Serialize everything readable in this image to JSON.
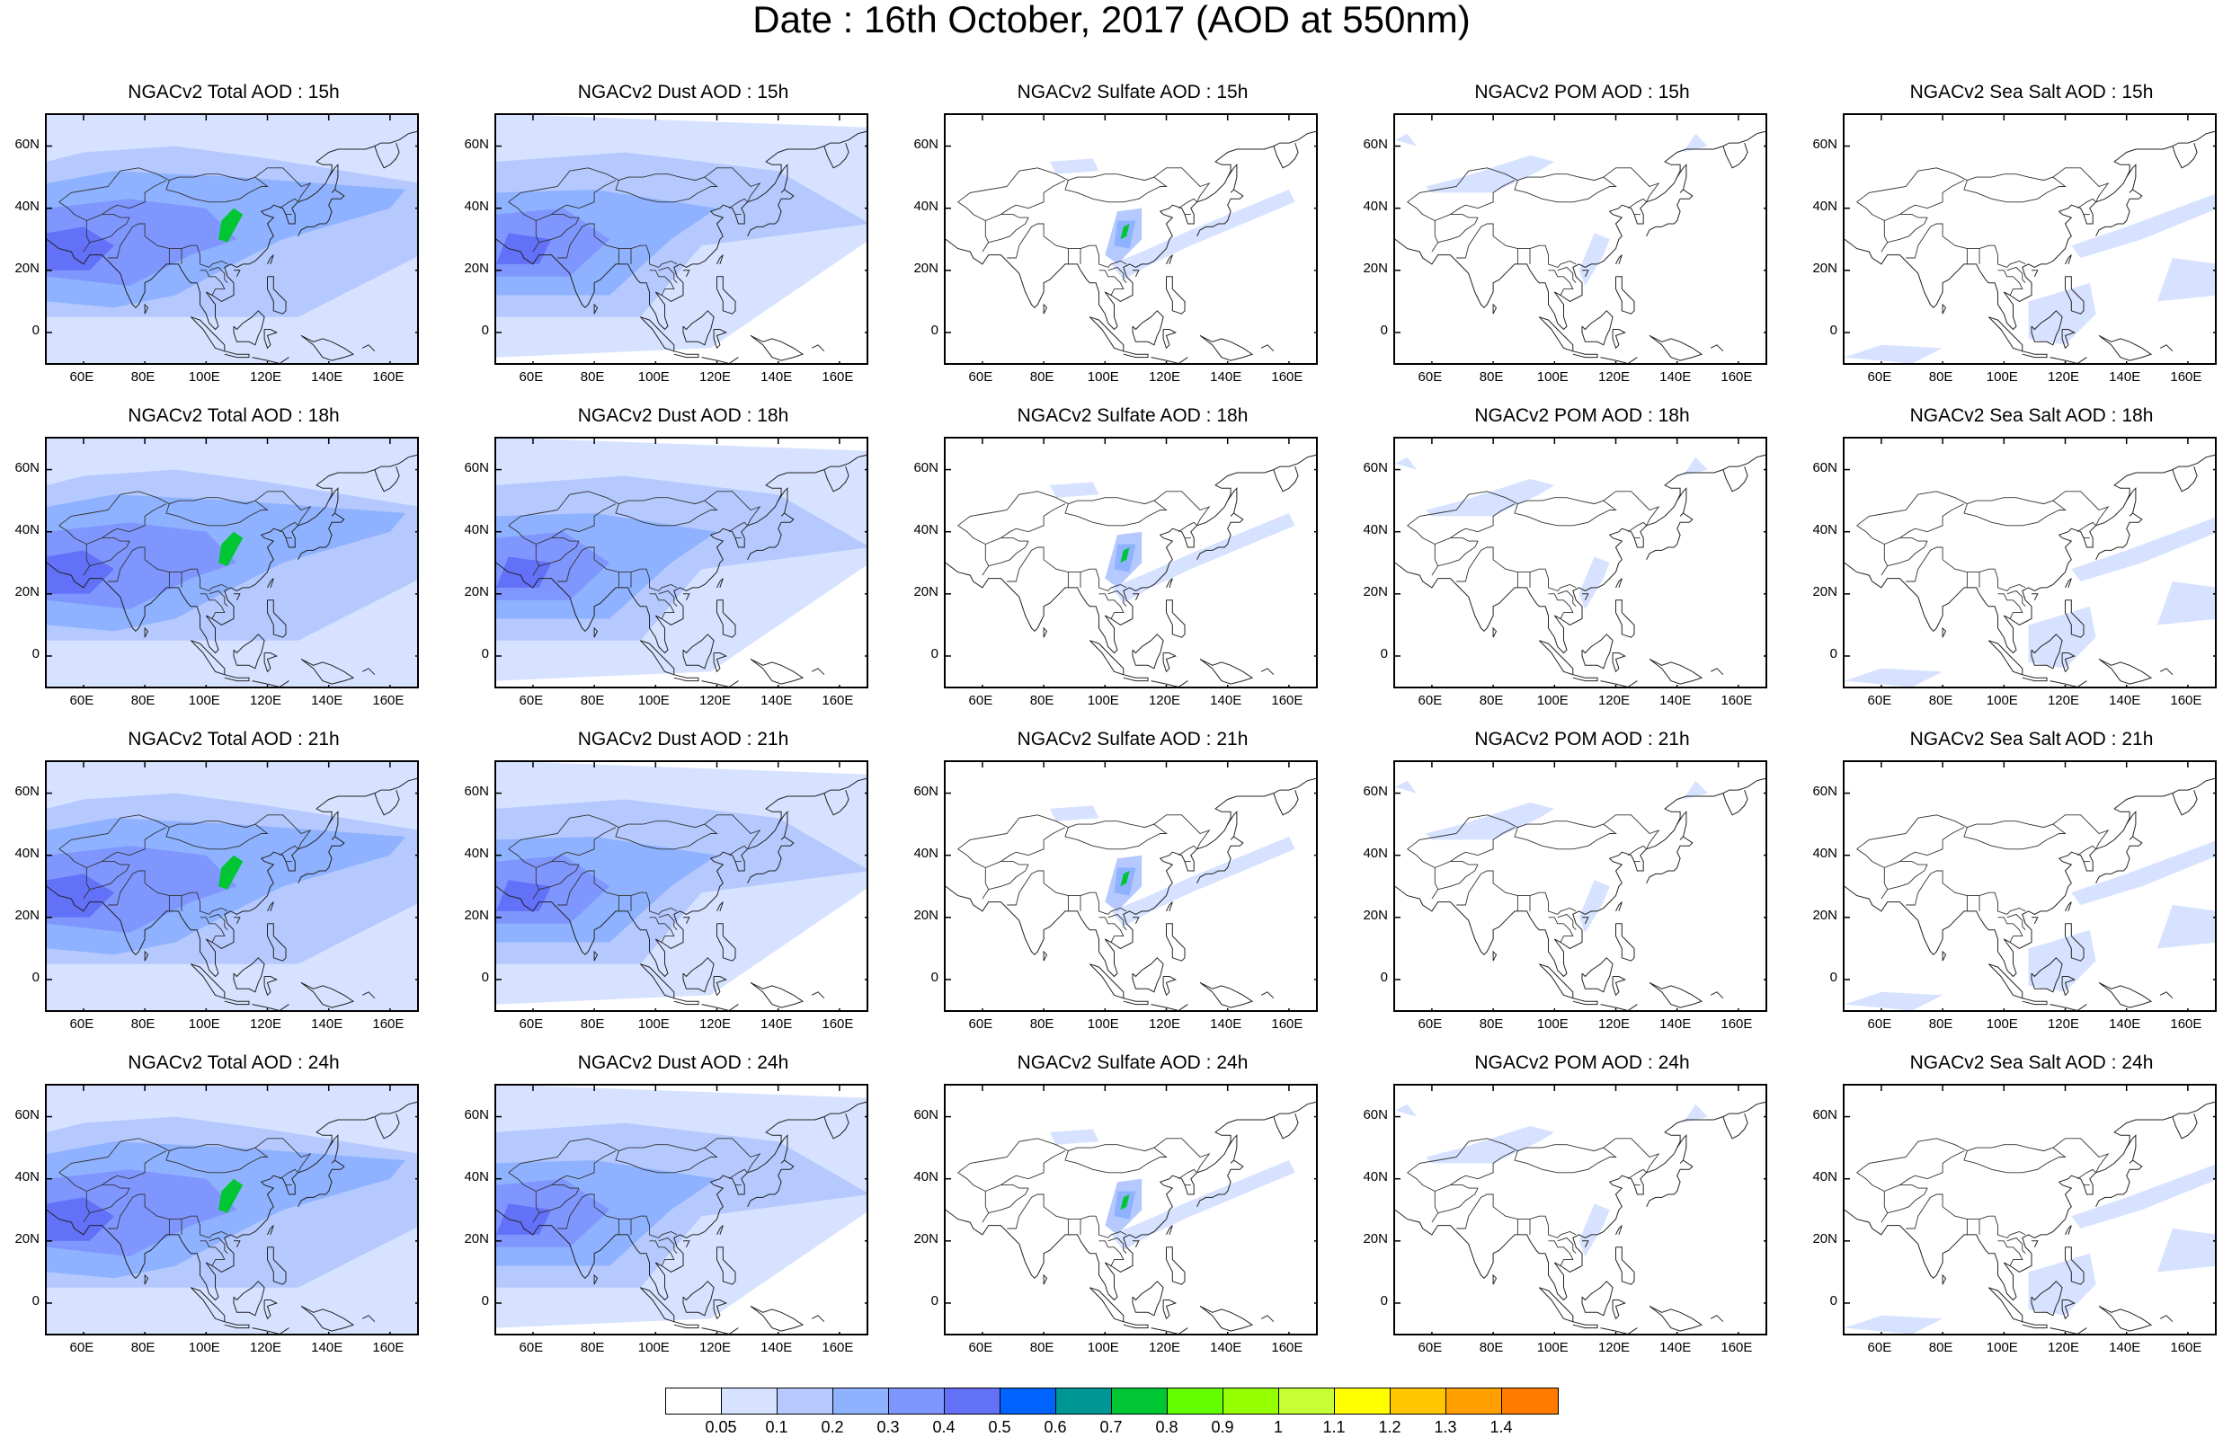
{
  "title": "Date : 16th October, 2017 (AOD at 550nm)",
  "lat_ticks": [
    "60N",
    "40N",
    "20N",
    "0"
  ],
  "lon_ticks": [
    "60E",
    "80E",
    "100E",
    "120E",
    "140E",
    "160E"
  ],
  "panels": [
    {
      "title": "NGACv2 Total AOD : 15h",
      "species": "total"
    },
    {
      "title": "NGACv2 Dust AOD : 15h",
      "species": "dust"
    },
    {
      "title": "NGACv2 Sulfate AOD : 15h",
      "species": "sulfate"
    },
    {
      "title": "NGACv2 POM AOD : 15h",
      "species": "pom"
    },
    {
      "title": "NGACv2 Sea Salt AOD : 15h",
      "species": "seasalt"
    },
    {
      "title": "NGACv2 Total AOD : 18h",
      "species": "total"
    },
    {
      "title": "NGACv2 Dust AOD : 18h",
      "species": "dust"
    },
    {
      "title": "NGACv2 Sulfate AOD : 18h",
      "species": "sulfate"
    },
    {
      "title": "NGACv2 POM AOD : 18h",
      "species": "pom"
    },
    {
      "title": "NGACv2 Sea Salt AOD : 18h",
      "species": "seasalt"
    },
    {
      "title": "NGACv2 Total AOD : 21h",
      "species": "total"
    },
    {
      "title": "NGACv2 Dust AOD : 21h",
      "species": "dust"
    },
    {
      "title": "NGACv2 Sulfate AOD : 21h",
      "species": "sulfate"
    },
    {
      "title": "NGACv2 POM AOD : 21h",
      "species": "pom"
    },
    {
      "title": "NGACv2 Sea Salt AOD : 21h",
      "species": "seasalt"
    },
    {
      "title": "NGACv2 Total AOD : 24h",
      "species": "total"
    },
    {
      "title": "NGACv2 Dust AOD : 24h",
      "species": "dust"
    },
    {
      "title": "NGACv2 Sulfate AOD : 24h",
      "species": "sulfate"
    },
    {
      "title": "NGACv2 POM AOD : 24h",
      "species": "pom"
    },
    {
      "title": "NGACv2 Sea Salt  AOD : 24h",
      "species": "seasalt"
    }
  ],
  "colorbar": {
    "labels": [
      "0.05",
      "0.1",
      "0.2",
      "0.3",
      "0.4",
      "0.5",
      "0.6",
      "0.7",
      "0.8",
      "0.9",
      "1",
      "1.1",
      "1.2",
      "1.3",
      "1.4"
    ],
    "colors": [
      "#ffffff",
      "#d6e2ff",
      "#b5c9ff",
      "#8eb2ff",
      "#7f96ff",
      "#6370f8",
      "#0063ff",
      "#009696",
      "#00c633",
      "#63ff00",
      "#96ff00",
      "#c6ff33",
      "#ffff00",
      "#ffc600",
      "#ffa000",
      "#ff7c00",
      "#ff1900"
    ]
  }
}
